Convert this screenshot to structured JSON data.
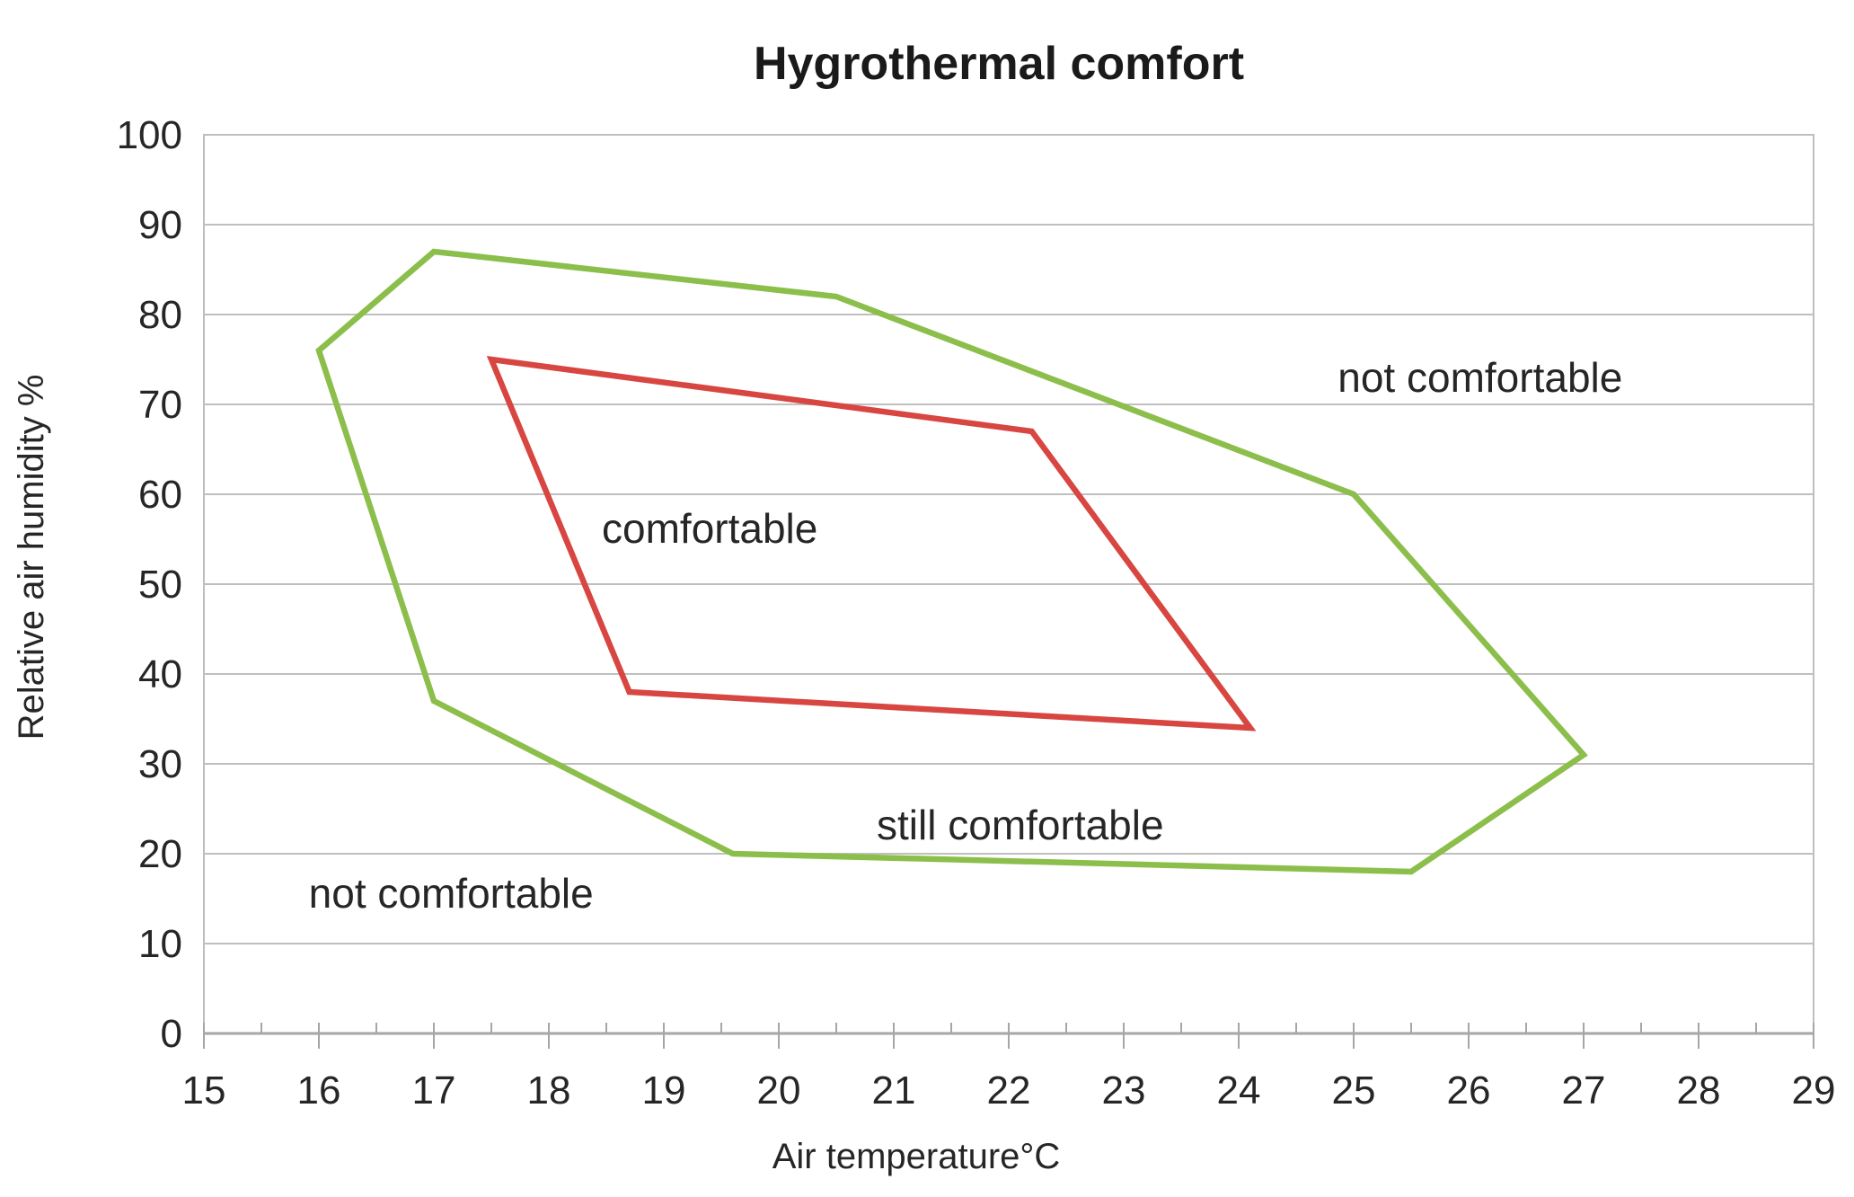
{
  "page": {
    "background": "#ffffff"
  },
  "chart_data": {
    "type": "line",
    "title": "Hygrothermal comfort",
    "xlabel": "Air temperature°C",
    "ylabel": "Relative air humidity %",
    "xlim": [
      15,
      29
    ],
    "ylim": [
      0,
      100
    ],
    "x_ticks": [
      15,
      16,
      17,
      18,
      19,
      20,
      21,
      22,
      23,
      24,
      25,
      26,
      27,
      28,
      29
    ],
    "x_minor_tick_step": 0.5,
    "y_ticks": [
      0,
      10,
      20,
      30,
      40,
      50,
      60,
      70,
      80,
      90,
      100
    ],
    "grid": "horizontal",
    "legend": "none",
    "series": [
      {
        "name": "still-comfortable-boundary",
        "color": "#8CBE4B",
        "closed": true,
        "points": [
          [
            16,
            76
          ],
          [
            17,
            87
          ],
          [
            20.5,
            82
          ],
          [
            25,
            60
          ],
          [
            27,
            31
          ],
          [
            25.5,
            18
          ],
          [
            19.6,
            20
          ],
          [
            17,
            37
          ]
        ]
      },
      {
        "name": "comfortable-boundary",
        "color": "#D84641",
        "closed": true,
        "points": [
          [
            17.5,
            75
          ],
          [
            22.2,
            67
          ],
          [
            24.1,
            34
          ],
          [
            18.7,
            38
          ]
        ]
      }
    ],
    "annotations": [
      {
        "id": "not-comfortable-top-right",
        "text": "not comfortable",
        "x": 26.1,
        "y": 73
      },
      {
        "id": "comfortable",
        "text": "comfortable",
        "x": 19.4,
        "y": 56.2
      },
      {
        "id": "still-comfortable",
        "text": "still comfortable",
        "x": 22.1,
        "y": 23.2
      },
      {
        "id": "not-comfortable-bottom-left",
        "text": "not comfortable",
        "x": 17.15,
        "y": 15.6
      }
    ],
    "colors": {
      "grid": "#BFBFBF",
      "border": "#BFBFBF",
      "axis": "#A6A6A6",
      "tick": "#A6A6A6",
      "text": "#262626",
      "title": "#1A1A1A",
      "plot_background": "#FFFFFF"
    }
  }
}
